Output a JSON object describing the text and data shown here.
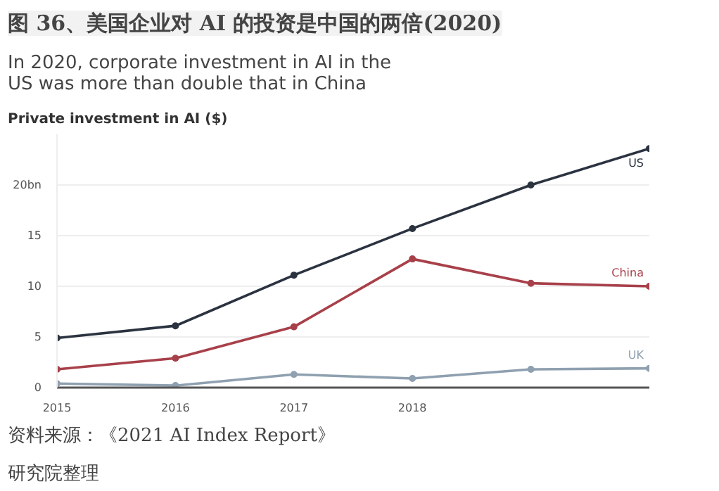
{
  "chart_data": {
    "type": "line",
    "title": "图 36、美国企业对 AI 的投资是中国的两倍(2020)",
    "subtitle": "In 2020, corporate investment in AI in the US was more than double that in China",
    "ylabel": "Private investment in AI ($)",
    "x": [
      2015,
      2016,
      2017,
      2018,
      2019,
      2020
    ],
    "series": [
      {
        "name": "US",
        "color": "#2b3340",
        "values": [
          4.9,
          6.1,
          11.1,
          15.7,
          20.0,
          23.6
        ]
      },
      {
        "name": "China",
        "color": "#a8404a",
        "values": [
          1.8,
          2.9,
          6.0,
          12.7,
          10.3,
          10.0
        ]
      },
      {
        "name": "UK",
        "color": "#8fa0b0",
        "values": [
          0.4,
          0.2,
          1.3,
          0.9,
          1.8,
          1.9
        ]
      }
    ],
    "xlim": [
      2015,
      2020
    ],
    "xticks": [
      2015,
      2016,
      2017,
      2018
    ],
    "ylim": [
      0,
      25
    ],
    "yticks": [
      0,
      5,
      10,
      15,
      {
        "value": 20,
        "label": "20bn"
      }
    ],
    "grid": "y",
    "marker": "circle",
    "line_style": "solid",
    "annotations": [
      "资料来源：《2021 AI Index Report》",
      "研究院整理"
    ]
  }
}
